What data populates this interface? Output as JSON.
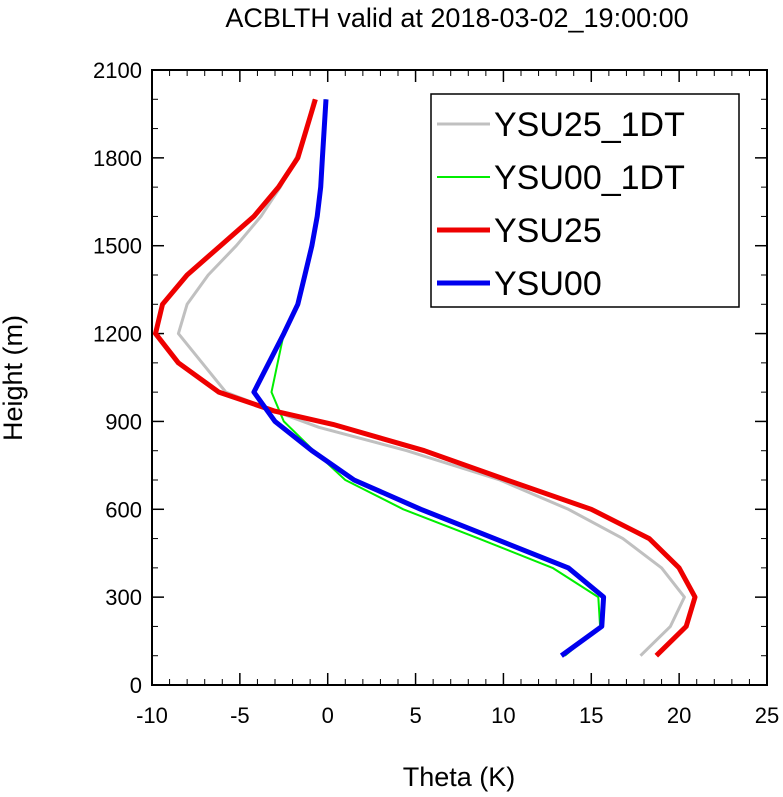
{
  "chart_data": {
    "type": "line",
    "title": "ACBLTH valid at 2018-03-02_19:00:00",
    "xlabel": "Theta (K)",
    "ylabel": "Height (m)",
    "xlim": [
      -10,
      25
    ],
    "ylim": [
      0,
      2100
    ],
    "xticks": [
      -10,
      -5,
      0,
      5,
      10,
      15,
      20,
      25
    ],
    "yticks": [
      0,
      300,
      600,
      900,
      1200,
      1500,
      1800,
      2100
    ],
    "grid": false,
    "legend_position": "top-right",
    "series": [
      {
        "name": "YSU25_1DT",
        "color": "#c0c0c0",
        "width": 3,
        "points": [
          [
            17.8,
            100
          ],
          [
            19.5,
            200
          ],
          [
            20.3,
            300
          ],
          [
            19.0,
            400
          ],
          [
            16.8,
            500
          ],
          [
            13.7,
            600
          ],
          [
            9.8,
            700
          ],
          [
            4.5,
            800
          ],
          [
            -0.5,
            880
          ],
          [
            -3.0,
            935
          ],
          [
            -5.8,
            1000
          ],
          [
            -8.5,
            1200
          ],
          [
            -8.0,
            1300
          ],
          [
            -6.8,
            1400
          ],
          [
            -5.2,
            1500
          ],
          [
            -3.8,
            1600
          ],
          [
            -2.7,
            1700
          ],
          [
            -1.8,
            1800
          ],
          [
            -1.2,
            1900
          ],
          [
            -0.8,
            2000
          ]
        ]
      },
      {
        "name": "YSU00_1DT",
        "color": "#00ee00",
        "width": 2,
        "points": [
          [
            13.5,
            100
          ],
          [
            15.5,
            200
          ],
          [
            15.4,
            300
          ],
          [
            12.8,
            400
          ],
          [
            8.6,
            500
          ],
          [
            4.3,
            600
          ],
          [
            1.0,
            700
          ],
          [
            -0.8,
            800
          ],
          [
            -2.5,
            900
          ],
          [
            -3.2,
            1000
          ],
          [
            -2.5,
            1200
          ],
          [
            -1.7,
            1300
          ],
          [
            -1.3,
            1400
          ],
          [
            -0.9,
            1500
          ],
          [
            -0.6,
            1600
          ],
          [
            -0.4,
            1700
          ],
          [
            -0.3,
            1800
          ],
          [
            -0.2,
            1900
          ],
          [
            -0.1,
            2000
          ]
        ]
      },
      {
        "name": "YSU25",
        "color": "#ee0000",
        "width": 5,
        "points": [
          [
            18.7,
            100
          ],
          [
            20.4,
            200
          ],
          [
            20.9,
            300
          ],
          [
            20.0,
            400
          ],
          [
            18.3,
            500
          ],
          [
            15.0,
            600
          ],
          [
            10.2,
            700
          ],
          [
            5.5,
            800
          ],
          [
            0.3,
            890
          ],
          [
            -3.0,
            935
          ],
          [
            -6.2,
            1000
          ],
          [
            -8.5,
            1100
          ],
          [
            -9.8,
            1200
          ],
          [
            -9.4,
            1300
          ],
          [
            -8.0,
            1400
          ],
          [
            -6.1,
            1500
          ],
          [
            -4.2,
            1600
          ],
          [
            -2.8,
            1700
          ],
          [
            -1.7,
            1800
          ],
          [
            -1.2,
            1900
          ],
          [
            -0.7,
            2000
          ]
        ]
      },
      {
        "name": "YSU00",
        "color": "#0000ee",
        "width": 5,
        "points": [
          [
            13.3,
            100
          ],
          [
            15.6,
            200
          ],
          [
            15.7,
            300
          ],
          [
            13.7,
            400
          ],
          [
            9.5,
            500
          ],
          [
            5.3,
            600
          ],
          [
            1.5,
            700
          ],
          [
            -0.9,
            800
          ],
          [
            -3.0,
            900
          ],
          [
            -4.2,
            1000
          ],
          [
            -2.5,
            1200
          ],
          [
            -1.7,
            1300
          ],
          [
            -1.3,
            1400
          ],
          [
            -0.9,
            1500
          ],
          [
            -0.6,
            1600
          ],
          [
            -0.4,
            1700
          ],
          [
            -0.3,
            1800
          ],
          [
            -0.2,
            1900
          ],
          [
            -0.1,
            2000
          ]
        ]
      }
    ]
  }
}
